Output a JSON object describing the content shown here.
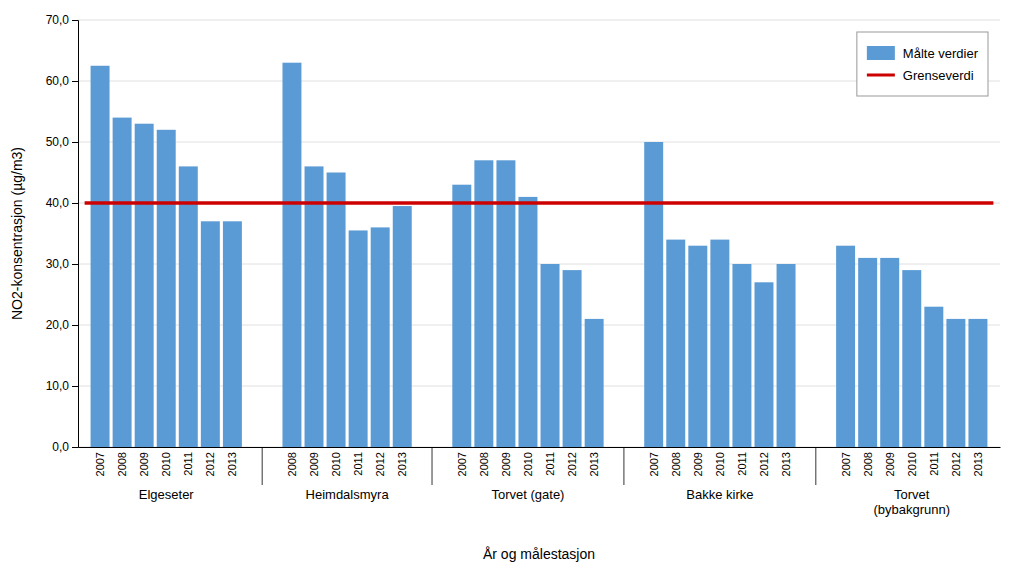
{
  "chart_data": {
    "type": "bar",
    "x_label": "År og målestasjon",
    "y_label": "NO2-konsentrasjon (µg/m3)",
    "ylim": [
      0,
      70.0
    ],
    "yticks": [
      {
        "value": 0.0,
        "label": "0,0"
      },
      {
        "value": 10.0,
        "label": "10,0"
      },
      {
        "value": 20.0,
        "label": "20,0"
      },
      {
        "value": 30.0,
        "label": "30,0"
      },
      {
        "value": 40.0,
        "label": "40,0"
      },
      {
        "value": 50.0,
        "label": "50,0"
      },
      {
        "value": 60.0,
        "label": "60,0"
      },
      {
        "value": 70.0,
        "label": "70,0"
      }
    ],
    "grid": true,
    "legend": "upper right",
    "series": [
      {
        "name": "Målte verdier",
        "type": "bar",
        "color": "#5B9BD5",
        "groups": [
          {
            "name": "Elgeseter",
            "categories": [
              "2007",
              "2008",
              "2009",
              "2010",
              "2011",
              "2012",
              "2013"
            ],
            "values": [
              62.5,
              54.0,
              53.0,
              52.0,
              46.0,
              37.0,
              37.0
            ]
          },
          {
            "name": "Heimdalsmyra",
            "categories": [
              "2008",
              "2009",
              "2010",
              "2011",
              "2012",
              "2013"
            ],
            "values": [
              63.0,
              46.0,
              45.0,
              35.5,
              36.0,
              39.5
            ]
          },
          {
            "name": "Torvet (gate)",
            "categories": [
              "2007",
              "2008",
              "2009",
              "2010",
              "2011",
              "2012",
              "2013"
            ],
            "values": [
              43.0,
              47.0,
              47.0,
              41.0,
              30.0,
              29.0,
              21.0
            ]
          },
          {
            "name": "Bakke kirke",
            "categories": [
              "2007",
              "2008",
              "2009",
              "2010",
              "2011",
              "2012",
              "2013"
            ],
            "values": [
              50.0,
              34.0,
              33.0,
              34.0,
              30.0,
              27.0,
              30.0
            ]
          },
          {
            "name": "Torvet\n(bybakgrunn)",
            "categories": [
              "2007",
              "2008",
              "2009",
              "2010",
              "2011",
              "2012",
              "2013"
            ],
            "values": [
              33.0,
              31.0,
              31.0,
              29.0,
              23.0,
              21.0,
              21.0
            ]
          }
        ]
      },
      {
        "name": "Grenseverdi",
        "type": "line",
        "color": "#CC0000",
        "value": 40.0
      }
    ]
  }
}
